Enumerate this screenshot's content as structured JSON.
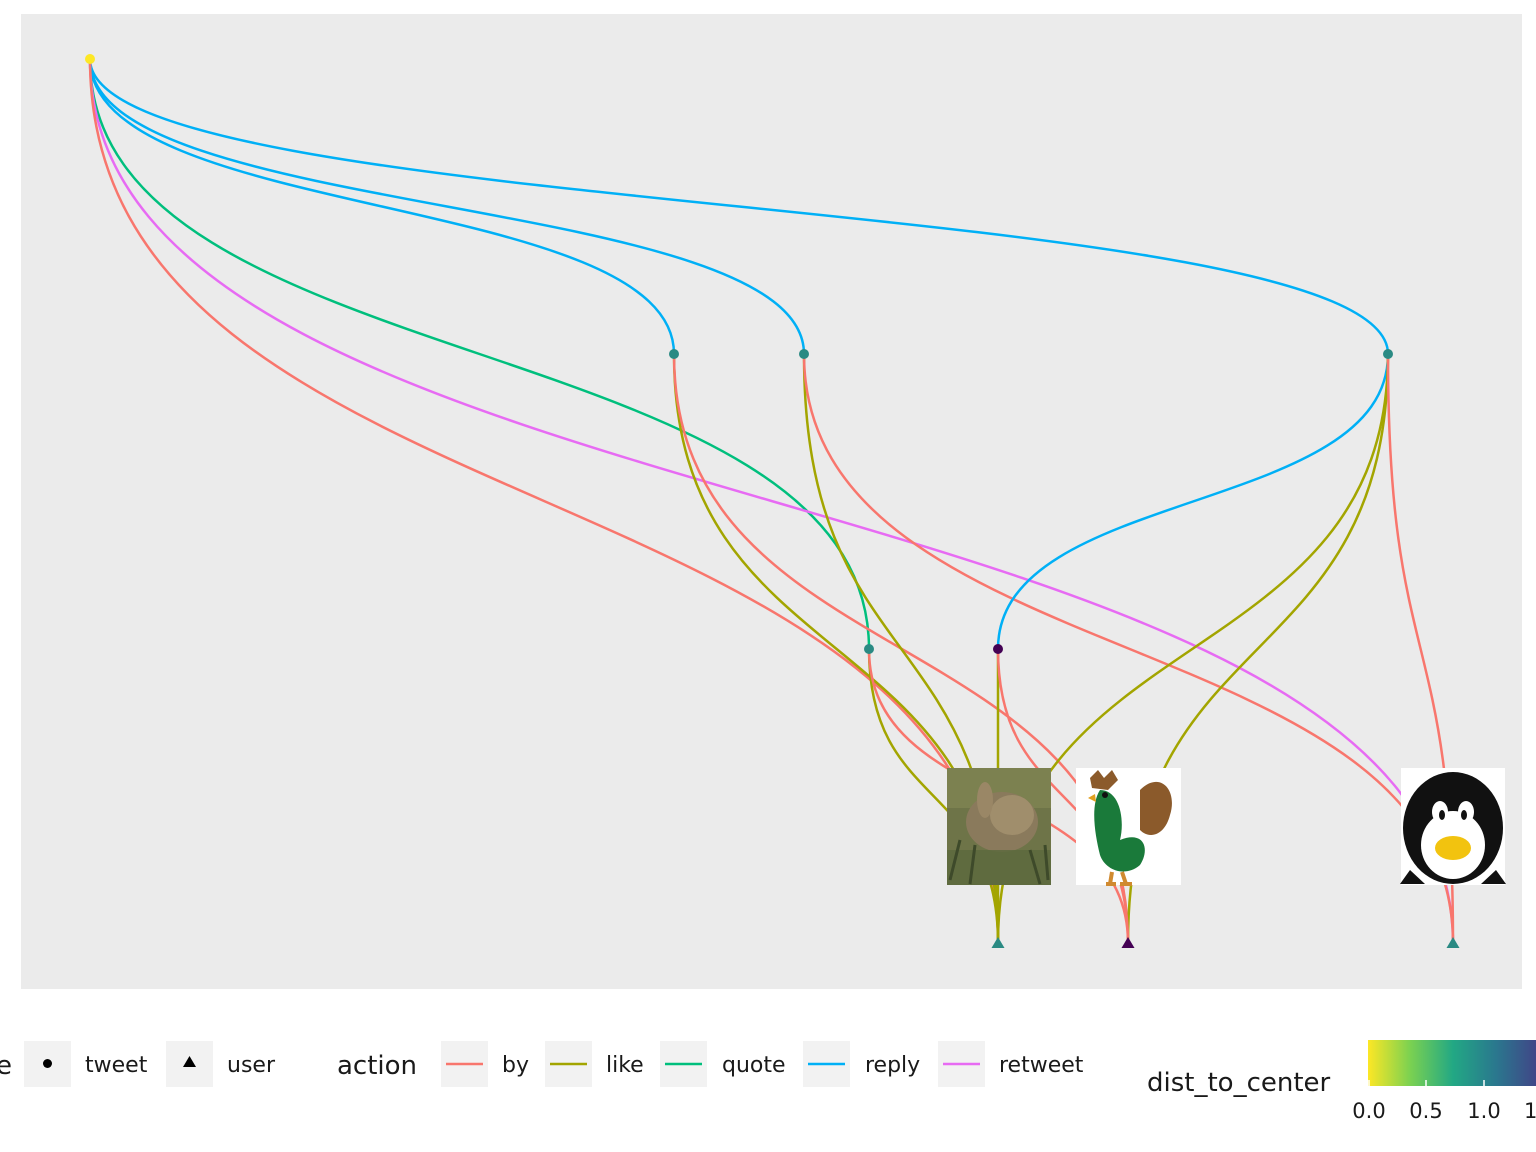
{
  "legend": {
    "type": {
      "title_fragment": "e",
      "items": [
        {
          "label": "tweet",
          "shape": "circle"
        },
        {
          "label": "user",
          "shape": "triangle"
        }
      ]
    },
    "action": {
      "title": "action",
      "items": [
        {
          "label": "by",
          "color": "#F8766D"
        },
        {
          "label": "like",
          "color": "#A3A500"
        },
        {
          "label": "quote",
          "color": "#00BF7D"
        },
        {
          "label": "reply",
          "color": "#00B0F6"
        },
        {
          "label": "retweet",
          "color": "#E76BF3"
        }
      ]
    },
    "dist_to_center": {
      "title": "dist_to_center",
      "ticks": [
        "0.0",
        "0.5",
        "1.0",
        "1"
      ],
      "colors": [
        "#FDE725",
        "#7AD151",
        "#22A884",
        "#2A788E",
        "#414487"
      ]
    }
  },
  "nodes": [
    {
      "id": "root",
      "type": "tweet",
      "color": "#FDE725"
    },
    {
      "id": "t1",
      "type": "tweet",
      "color": "#2A8A83"
    },
    {
      "id": "t2",
      "type": "tweet",
      "color": "#2A8A83"
    },
    {
      "id": "t3",
      "type": "tweet",
      "color": "#2A8A83"
    },
    {
      "id": "t4",
      "type": "tweet",
      "color": "#2A8A83"
    },
    {
      "id": "t5",
      "type": "tweet",
      "color": "#440154"
    },
    {
      "id": "u_rabbit",
      "type": "user",
      "color": "#2A8A83",
      "image": "rabbit"
    },
    {
      "id": "u_rooster",
      "type": "user",
      "color": "#440154",
      "image": "rooster"
    },
    {
      "id": "u_penguin",
      "type": "user",
      "color": "#2A8A83",
      "image": "penguin"
    }
  ],
  "edges": [
    {
      "from": "root",
      "to": "t1",
      "action": "reply"
    },
    {
      "from": "root",
      "to": "t2",
      "action": "reply"
    },
    {
      "from": "root",
      "to": "t3",
      "action": "reply"
    },
    {
      "from": "root",
      "to": "t4",
      "action": "quote"
    },
    {
      "from": "root",
      "to": "u_penguin",
      "action": "retweet"
    },
    {
      "from": "root",
      "to": "u_rabbit",
      "action": "by"
    },
    {
      "from": "t1",
      "to": "u_rabbit",
      "action": "like"
    },
    {
      "from": "t1",
      "to": "u_rooster",
      "action": "by"
    },
    {
      "from": "t2",
      "to": "u_rabbit",
      "action": "like"
    },
    {
      "from": "t2",
      "to": "u_penguin",
      "action": "by"
    },
    {
      "from": "t3",
      "to": "t5",
      "action": "reply"
    },
    {
      "from": "t3",
      "to": "u_rabbit",
      "action": "like"
    },
    {
      "from": "t3",
      "to": "u_rooster",
      "action": "like"
    },
    {
      "from": "t3",
      "to": "u_penguin",
      "action": "by"
    },
    {
      "from": "t4",
      "to": "u_rabbit",
      "action": "like"
    },
    {
      "from": "t4",
      "to": "u_rooster",
      "action": "by"
    },
    {
      "from": "t5",
      "to": "u_rabbit",
      "action": "like"
    },
    {
      "from": "t5",
      "to": "u_rooster",
      "action": "by"
    }
  ]
}
